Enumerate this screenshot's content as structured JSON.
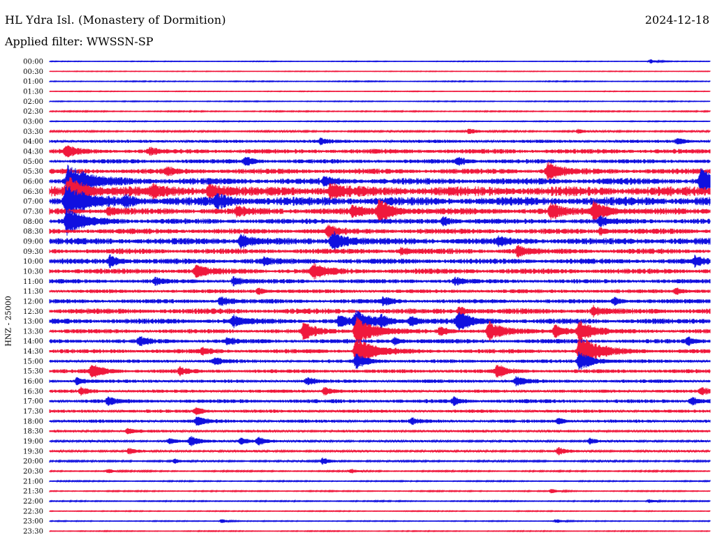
{
  "header": {
    "station": "HL Ydra Isl. (Monastery of Dormition)",
    "date": "2024-12-18",
    "filter_prefix": "Applied filter: ",
    "filter_name": "WWSSN-SP",
    "channel": "HNZ - 25000"
  },
  "colors": {
    "trace_a": "#1010e0",
    "trace_b": "#f0183c",
    "background": "#ffffff"
  },
  "chart_data": {
    "type": "line",
    "title": "HL Ydra Isl. (Monastery of Dormition)",
    "subtitle": "Applied filter: WWSSN-SP",
    "xlabel": "",
    "ylabel": "HNZ - 25000",
    "row_labels": [
      "00:00",
      "00:30",
      "01:00",
      "01:30",
      "02:00",
      "02:30",
      "03:00",
      "03:30",
      "04:00",
      "04:30",
      "05:00",
      "05:30",
      "06:00",
      "06:30",
      "07:00",
      "07:30",
      "08:00",
      "08:30",
      "09:00",
      "09:30",
      "10:00",
      "10:30",
      "11:00",
      "11:30",
      "12:00",
      "12:30",
      "13:00",
      "13:30",
      "14:00",
      "14:30",
      "15:00",
      "15:30",
      "16:00",
      "16:30",
      "17:00",
      "17:30",
      "18:00",
      "18:30",
      "19:00",
      "19:30",
      "20:00",
      "20:30",
      "21:00",
      "21:30",
      "22:00",
      "22:30",
      "23:00",
      "23:30"
    ],
    "noise_level": [
      0.3,
      0.3,
      0.4,
      0.3,
      0.4,
      0.5,
      0.4,
      0.8,
      1.5,
      2.2,
      2.0,
      2.5,
      3.0,
      4.5,
      4.0,
      3.0,
      2.5,
      2.5,
      3.0,
      2.5,
      2.5,
      2.5,
      2.0,
      1.8,
      2.0,
      2.5,
      2.5,
      2.0,
      2.0,
      2.0,
      1.6,
      1.8,
      1.6,
      1.5,
      1.8,
      1.5,
      1.5,
      1.2,
      1.0,
      1.0,
      0.8,
      0.6,
      0.5,
      0.5,
      0.5,
      0.4,
      0.4,
      0.4
    ],
    "events": [
      {
        "row": 0,
        "x": 932,
        "amp": 3
      },
      {
        "row": 7,
        "x": 672,
        "amp": 4
      },
      {
        "row": 7,
        "x": 828,
        "amp": 3
      },
      {
        "row": 8,
        "x": 460,
        "amp": 4
      },
      {
        "row": 8,
        "x": 970,
        "amp": 5
      },
      {
        "row": 9,
        "x": 95,
        "amp": 8
      },
      {
        "row": 9,
        "x": 215,
        "amp": 5
      },
      {
        "row": 10,
        "x": 352,
        "amp": 6
      },
      {
        "row": 10,
        "x": 656,
        "amp": 6
      },
      {
        "row": 11,
        "x": 785,
        "amp": 13
      },
      {
        "row": 11,
        "x": 240,
        "amp": 5
      },
      {
        "row": 12,
        "x": 97,
        "amp": 24
      },
      {
        "row": 12,
        "x": 1004,
        "amp": 18
      },
      {
        "row": 12,
        "x": 466,
        "amp": 6
      },
      {
        "row": 13,
        "x": 97,
        "amp": 20
      },
      {
        "row": 13,
        "x": 300,
        "amp": 10
      },
      {
        "row": 13,
        "x": 474,
        "amp": 10
      },
      {
        "row": 13,
        "x": 220,
        "amp": 7
      },
      {
        "row": 14,
        "x": 95,
        "amp": 22
      },
      {
        "row": 14,
        "x": 310,
        "amp": 9
      },
      {
        "row": 14,
        "x": 180,
        "amp": 6
      },
      {
        "row": 15,
        "x": 543,
        "amp": 16
      },
      {
        "row": 15,
        "x": 850,
        "amp": 14
      },
      {
        "row": 15,
        "x": 790,
        "amp": 10
      },
      {
        "row": 15,
        "x": 505,
        "amp": 8
      },
      {
        "row": 15,
        "x": 340,
        "amp": 6
      },
      {
        "row": 15,
        "x": 155,
        "amp": 5
      },
      {
        "row": 16,
        "x": 96,
        "amp": 18
      },
      {
        "row": 16,
        "x": 635,
        "amp": 6
      },
      {
        "row": 16,
        "x": 860,
        "amp": 6
      },
      {
        "row": 17,
        "x": 470,
        "amp": 8
      },
      {
        "row": 17,
        "x": 860,
        "amp": 5
      },
      {
        "row": 18,
        "x": 476,
        "amp": 14
      },
      {
        "row": 18,
        "x": 345,
        "amp": 10
      },
      {
        "row": 18,
        "x": 715,
        "amp": 5
      },
      {
        "row": 19,
        "x": 742,
        "amp": 7
      },
      {
        "row": 19,
        "x": 575,
        "amp": 5
      },
      {
        "row": 20,
        "x": 158,
        "amp": 8
      },
      {
        "row": 20,
        "x": 995,
        "amp": 6
      },
      {
        "row": 20,
        "x": 378,
        "amp": 5
      },
      {
        "row": 21,
        "x": 448,
        "amp": 11
      },
      {
        "row": 21,
        "x": 281,
        "amp": 9
      },
      {
        "row": 22,
        "x": 335,
        "amp": 6
      },
      {
        "row": 22,
        "x": 652,
        "amp": 5
      },
      {
        "row": 22,
        "x": 222,
        "amp": 5
      },
      {
        "row": 23,
        "x": 968,
        "amp": 5
      },
      {
        "row": 23,
        "x": 370,
        "amp": 5
      },
      {
        "row": 24,
        "x": 316,
        "amp": 7
      },
      {
        "row": 24,
        "x": 550,
        "amp": 6
      },
      {
        "row": 24,
        "x": 880,
        "amp": 5
      },
      {
        "row": 25,
        "x": 850,
        "amp": 6
      },
      {
        "row": 25,
        "x": 658,
        "amp": 6
      },
      {
        "row": 26,
        "x": 656,
        "amp": 13
      },
      {
        "row": 26,
        "x": 510,
        "amp": 14
      },
      {
        "row": 26,
        "x": 486,
        "amp": 8
      },
      {
        "row": 26,
        "x": 588,
        "amp": 7
      },
      {
        "row": 26,
        "x": 335,
        "amp": 7
      },
      {
        "row": 26,
        "x": 546,
        "amp": 6
      },
      {
        "row": 27,
        "x": 435,
        "amp": 12
      },
      {
        "row": 27,
        "x": 510,
        "amp": 20
      },
      {
        "row": 27,
        "x": 700,
        "amp": 14
      },
      {
        "row": 27,
        "x": 795,
        "amp": 10
      },
      {
        "row": 27,
        "x": 830,
        "amp": 14
      },
      {
        "row": 27,
        "x": 630,
        "amp": 6
      },
      {
        "row": 28,
        "x": 200,
        "amp": 6
      },
      {
        "row": 28,
        "x": 325,
        "amp": 5
      },
      {
        "row": 28,
        "x": 565,
        "amp": 5
      },
      {
        "row": 28,
        "x": 985,
        "amp": 5
      },
      {
        "row": 29,
        "x": 510,
        "amp": 20
      },
      {
        "row": 29,
        "x": 830,
        "amp": 22
      },
      {
        "row": 29,
        "x": 290,
        "amp": 5
      },
      {
        "row": 30,
        "x": 308,
        "amp": 5
      },
      {
        "row": 30,
        "x": 510,
        "amp": 10
      },
      {
        "row": 30,
        "x": 830,
        "amp": 14
      },
      {
        "row": 31,
        "x": 132,
        "amp": 10
      },
      {
        "row": 31,
        "x": 712,
        "amp": 9
      },
      {
        "row": 31,
        "x": 258,
        "amp": 5
      },
      {
        "row": 32,
        "x": 440,
        "amp": 5
      },
      {
        "row": 32,
        "x": 740,
        "amp": 6
      },
      {
        "row": 32,
        "x": 110,
        "amp": 5
      },
      {
        "row": 33,
        "x": 465,
        "amp": 6
      },
      {
        "row": 33,
        "x": 116,
        "amp": 5
      },
      {
        "row": 33,
        "x": 1005,
        "amp": 5
      },
      {
        "row": 34,
        "x": 990,
        "amp": 6
      },
      {
        "row": 34,
        "x": 155,
        "amp": 5
      },
      {
        "row": 34,
        "x": 650,
        "amp": 5
      },
      {
        "row": 35,
        "x": 280,
        "amp": 5
      },
      {
        "row": 36,
        "x": 283,
        "amp": 7
      },
      {
        "row": 36,
        "x": 590,
        "amp": 4
      },
      {
        "row": 36,
        "x": 800,
        "amp": 4
      },
      {
        "row": 37,
        "x": 183,
        "amp": 4
      },
      {
        "row": 38,
        "x": 273,
        "amp": 7
      },
      {
        "row": 38,
        "x": 345,
        "amp": 6
      },
      {
        "row": 38,
        "x": 370,
        "amp": 6
      },
      {
        "row": 38,
        "x": 845,
        "amp": 4
      },
      {
        "row": 38,
        "x": 243,
        "amp": 4
      },
      {
        "row": 39,
        "x": 800,
        "amp": 5
      },
      {
        "row": 39,
        "x": 185,
        "amp": 4
      },
      {
        "row": 40,
        "x": 462,
        "amp": 5
      },
      {
        "row": 40,
        "x": 250,
        "amp": 3
      },
      {
        "row": 41,
        "x": 155,
        "amp": 3
      },
      {
        "row": 41,
        "x": 503,
        "amp": 3
      },
      {
        "row": 43,
        "x": 790,
        "amp": 3
      },
      {
        "row": 44,
        "x": 930,
        "amp": 3
      },
      {
        "row": 46,
        "x": 797,
        "amp": 3
      },
      {
        "row": 46,
        "x": 318,
        "amp": 3
      }
    ]
  }
}
